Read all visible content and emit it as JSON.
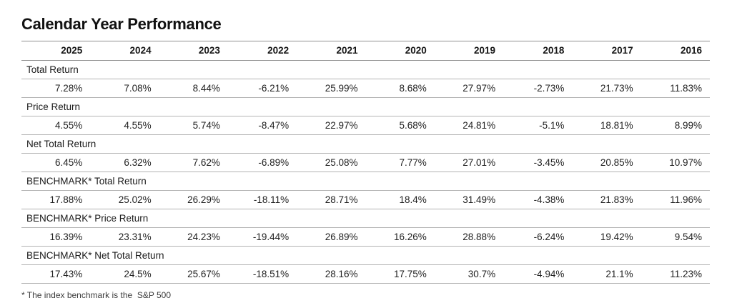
{
  "page_title": "Calendar Year Performance",
  "table": {
    "years": [
      "2025",
      "2024",
      "2023",
      "2022",
      "2021",
      "2020",
      "2019",
      "2018",
      "2017",
      "2016"
    ],
    "sections": [
      {
        "label": "Total Return",
        "values": [
          "7.28%",
          "7.08%",
          "8.44%",
          "-6.21%",
          "25.99%",
          "8.68%",
          "27.97%",
          "-2.73%",
          "21.73%",
          "11.83%"
        ]
      },
      {
        "label": "Price Return",
        "values": [
          "4.55%",
          "4.55%",
          "5.74%",
          "-8.47%",
          "22.97%",
          "5.68%",
          "24.81%",
          "-5.1%",
          "18.81%",
          "8.99%"
        ]
      },
      {
        "label": "Net Total Return",
        "values": [
          "6.45%",
          "6.32%",
          "7.62%",
          "-6.89%",
          "25.08%",
          "7.77%",
          "27.01%",
          "-3.45%",
          "20.85%",
          "10.97%"
        ]
      },
      {
        "label": "BENCHMARK* Total Return",
        "values": [
          "17.88%",
          "25.02%",
          "26.29%",
          "-18.11%",
          "28.71%",
          "18.4%",
          "31.49%",
          "-4.38%",
          "21.83%",
          "11.96%"
        ]
      },
      {
        "label": "BENCHMARK* Price Return",
        "values": [
          "16.39%",
          "23.31%",
          "24.23%",
          "-19.44%",
          "26.89%",
          "16.26%",
          "28.88%",
          "-6.24%",
          "19.42%",
          "9.54%"
        ]
      },
      {
        "label": "BENCHMARK* Net Total Return",
        "values": [
          "17.43%",
          "24.5%",
          "25.67%",
          "-18.51%",
          "28.16%",
          "17.75%",
          "30.7%",
          "-4.94%",
          "21.1%",
          "11.23%"
        ]
      }
    ]
  },
  "footnote": "* The index benchmark is the  S&P 500",
  "colors": {
    "background": "#ffffff",
    "text": "#1c1c1c",
    "header_line": "#8f8f8f",
    "row_line": "#b3b3b3"
  },
  "chart_data": {
    "type": "table",
    "title": "Calendar Year Performance",
    "columns": [
      "2025",
      "2024",
      "2023",
      "2022",
      "2021",
      "2020",
      "2019",
      "2018",
      "2017",
      "2016"
    ],
    "unit": "%",
    "rows": [
      {
        "label": "Total Return",
        "values": [
          7.28,
          7.08,
          8.44,
          -6.21,
          25.99,
          8.68,
          27.97,
          -2.73,
          21.73,
          11.83
        ]
      },
      {
        "label": "Price Return",
        "values": [
          4.55,
          4.55,
          5.74,
          -8.47,
          22.97,
          5.68,
          24.81,
          -5.1,
          18.81,
          8.99
        ]
      },
      {
        "label": "Net Total Return",
        "values": [
          6.45,
          6.32,
          7.62,
          -6.89,
          25.08,
          7.77,
          27.01,
          -3.45,
          20.85,
          10.97
        ]
      },
      {
        "label": "BENCHMARK* Total Return",
        "values": [
          17.88,
          25.02,
          26.29,
          -18.11,
          28.71,
          18.4,
          31.49,
          -4.38,
          21.83,
          11.96
        ]
      },
      {
        "label": "BENCHMARK* Price Return",
        "values": [
          16.39,
          23.31,
          24.23,
          -19.44,
          26.89,
          16.26,
          28.88,
          -6.24,
          19.42,
          9.54
        ]
      },
      {
        "label": "BENCHMARK* Net Total Return",
        "values": [
          17.43,
          24.5,
          25.67,
          -18.51,
          28.16,
          17.75,
          30.7,
          -4.94,
          21.1,
          11.23
        ]
      }
    ],
    "footnote": "* The index benchmark is the S&P 500"
  }
}
